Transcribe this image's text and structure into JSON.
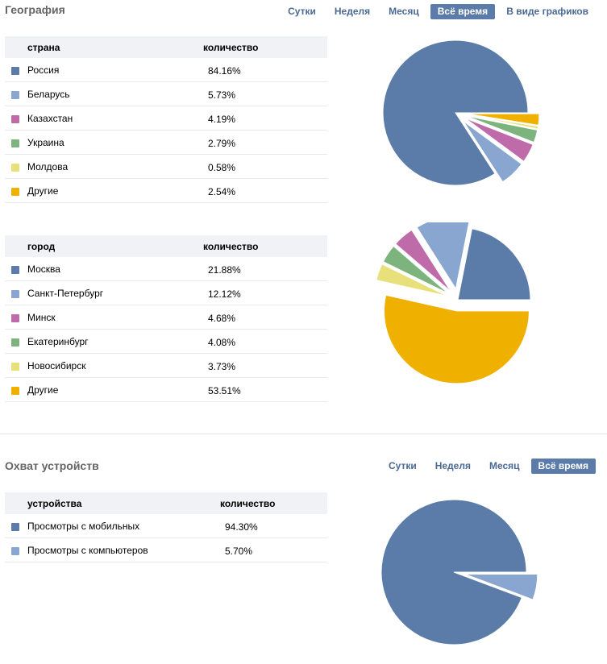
{
  "geography": {
    "title": "География",
    "tabs": [
      "Сутки",
      "Неделя",
      "Месяц",
      "Всё время",
      "В виде графиков"
    ],
    "active_tab": "Всё время",
    "countries": {
      "header": {
        "label": "страна",
        "value": "количество"
      },
      "rows": [
        {
          "label": "Россия",
          "value": "84.16%"
        },
        {
          "label": "Беларусь",
          "value": "5.73%"
        },
        {
          "label": "Казахстан",
          "value": "4.19%"
        },
        {
          "label": "Украина",
          "value": "2.79%"
        },
        {
          "label": "Молдова",
          "value": "0.58%"
        },
        {
          "label": "Другие",
          "value": "2.54%"
        }
      ]
    },
    "cities": {
      "header": {
        "label": "город",
        "value": "количество"
      },
      "rows": [
        {
          "label": "Москва",
          "value": "21.88%"
        },
        {
          "label": "Санкт-Петербург",
          "value": "12.12%"
        },
        {
          "label": "Минск",
          "value": "4.68%"
        },
        {
          "label": "Екатеринбург",
          "value": "4.08%"
        },
        {
          "label": "Новосибирск",
          "value": "3.73%"
        },
        {
          "label": "Другие",
          "value": "53.51%"
        }
      ]
    }
  },
  "devices": {
    "title": "Охват устройств",
    "tabs": [
      "Сутки",
      "Неделя",
      "Месяц",
      "Всё время"
    ],
    "active_tab": "Всё время",
    "header": {
      "label": "устройства",
      "value": "количество"
    },
    "rows": [
      {
        "label": "Просмотры с мобильных",
        "value": "94.30%"
      },
      {
        "label": "Просмотры с компьютеров",
        "value": "5.70%"
      }
    ]
  },
  "palette": [
    "#5b7ca8",
    "#88a6d0",
    "#bf6aa9",
    "#7db37d",
    "#e8e07a",
    "#f0b000"
  ],
  "chart_data": [
    {
      "type": "pie",
      "categories": [
        "Россия",
        "Беларусь",
        "Казахстан",
        "Украина",
        "Молдова",
        "Другие"
      ],
      "values": [
        84.16,
        5.73,
        4.19,
        2.79,
        0.58,
        2.54
      ]
    },
    {
      "type": "pie",
      "categories": [
        "Москва",
        "Санкт-Петербург",
        "Минск",
        "Екатеринбург",
        "Новосибирск",
        "Другие"
      ],
      "values": [
        21.88,
        12.12,
        4.68,
        4.08,
        3.73,
        53.51
      ]
    },
    {
      "type": "pie",
      "categories": [
        "Просмотры с мобильных",
        "Просмотры с компьютеров"
      ],
      "values": [
        94.3,
        5.7
      ]
    }
  ]
}
